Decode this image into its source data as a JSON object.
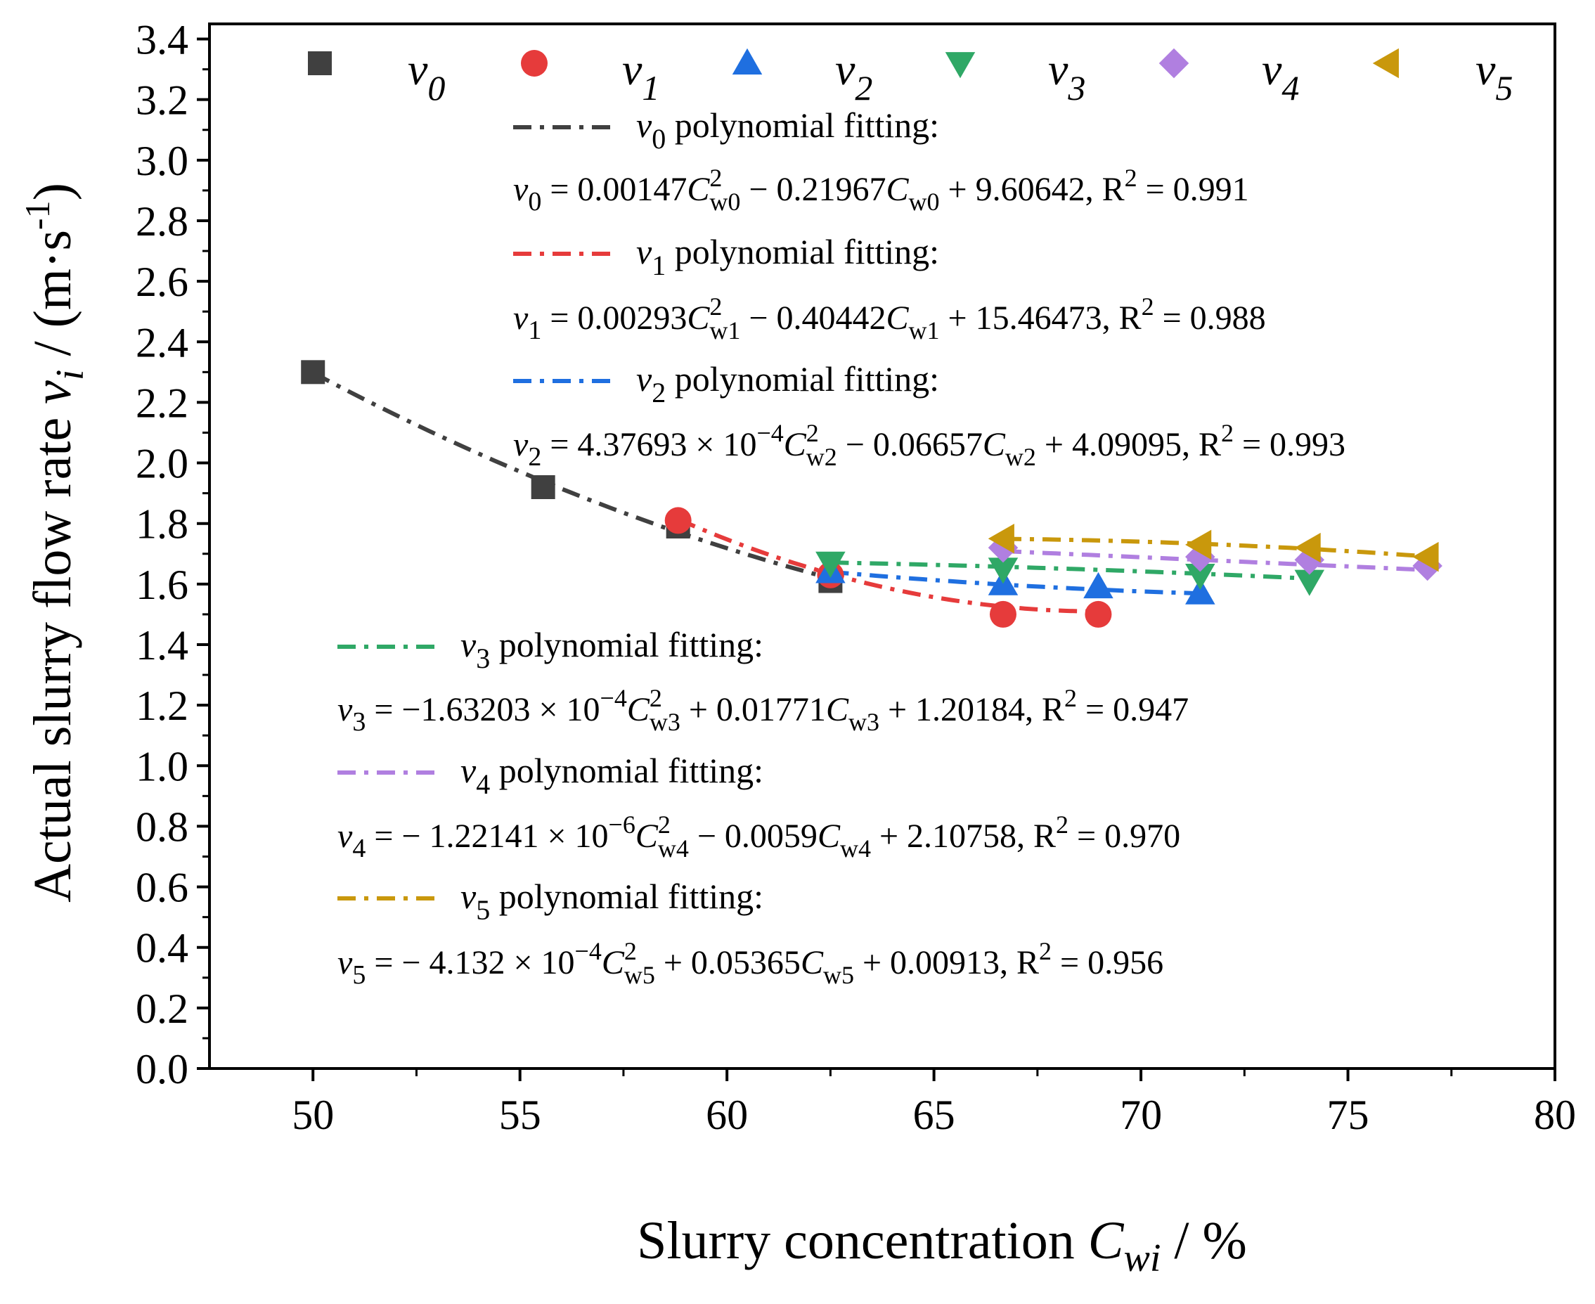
{
  "chart_data": {
    "type": "scatter",
    "title": "",
    "xlabel": "Slurry concentration",
    "xlabel_symbol": "C",
    "xlabel_sub": "wi",
    "xlabel_unit": " / %",
    "ylabel": "Actual slurry flow rate",
    "ylabel_symbol": "v",
    "ylabel_sub": "i",
    "ylabel_unit": " / (m·s",
    "ylabel_unit_sup": "-1",
    "ylabel_unit_close": ")",
    "xlim": [
      47.5,
      80
    ],
    "ylim": [
      0,
      3.45
    ],
    "x_ticks": [
      50,
      55,
      60,
      65,
      70,
      75,
      80
    ],
    "x_tick_labels": [
      "50",
      "55",
      "60",
      "65",
      "70",
      "75",
      "80"
    ],
    "y_ticks": [
      0.0,
      0.2,
      0.4,
      0.6,
      0.8,
      1.0,
      1.2,
      1.4,
      1.6,
      1.8,
      2.0,
      2.2,
      2.4,
      2.6,
      2.8,
      3.0,
      3.2,
      3.4
    ],
    "y_tick_labels": [
      "0.0",
      "0.2",
      "0.4",
      "0.6",
      "0.8",
      "1.0",
      "1.2",
      "1.4",
      "1.6",
      "1.8",
      "2.0",
      "2.2",
      "2.4",
      "2.6",
      "2.8",
      "3.0",
      "3.2",
      "3.4"
    ],
    "legend_position": "top",
    "series": [
      {
        "name": "v0",
        "symbol": "v",
        "sub": "0",
        "marker": "square",
        "color": "#404040",
        "points": [
          [
            50.0,
            2.3
          ],
          [
            55.56,
            1.92
          ],
          [
            58.82,
            1.79
          ],
          [
            62.5,
            1.61
          ]
        ],
        "fit": {
          "a": 0.00147,
          "b": -0.21967,
          "c": 9.60642,
          "x_range": [
            50.0,
            62.5
          ]
        },
        "fit_title": " polynomial fitting:",
        "equation": {
          "lhs": "v",
          "lhs_sub": "0",
          "p1": " = 0.00147",
          "c1": "C",
          "c1_sup": "2",
          "c1_sub": "w0",
          "p2": " − 0.21967",
          "c2": "C",
          "c2_sub": "w0",
          "p3": " + 9.60642, R",
          "r_sup": "2",
          "p4": " = 0.991"
        }
      },
      {
        "name": "v1",
        "symbol": "v",
        "sub": "1",
        "marker": "circle",
        "color": "#e63b3b",
        "points": [
          [
            58.82,
            1.81
          ],
          [
            62.5,
            1.63
          ],
          [
            66.67,
            1.5
          ],
          [
            68.97,
            1.5
          ]
        ],
        "fit": {
          "a": 0.00293,
          "b": -0.40442,
          "c": 15.46473,
          "x_range": [
            58.82,
            68.97
          ]
        },
        "fit_title": " polynomial fitting:",
        "equation": {
          "lhs": "v",
          "lhs_sub": "1",
          "p1": " = 0.00293",
          "c1": "C",
          "c1_sup": "2",
          "c1_sub": "w1",
          "p2": " − 0.40442",
          "c2": "C",
          "c2_sub": "w1",
          "p3": " + 15.46473, R",
          "r_sup": "2",
          "p4": " = 0.988"
        }
      },
      {
        "name": "v2",
        "symbol": "v",
        "sub": "2",
        "marker": "triangle-up",
        "color": "#1f6fe0",
        "points": [
          [
            62.5,
            1.64
          ],
          [
            66.67,
            1.6
          ],
          [
            68.97,
            1.59
          ],
          [
            71.43,
            1.57
          ]
        ],
        "fit": {
          "a": 0.000437693,
          "b": -0.06657,
          "c": 4.09095,
          "x_range": [
            62.5,
            71.43
          ]
        },
        "fit_title": " polynomial fitting:",
        "equation": {
          "lhs": "v",
          "lhs_sub": "2",
          "p1": " = 4.37693 × 10",
          "p1_sup": "−4",
          "c1": "C",
          "c1_sup": "2",
          "c1_sub": "w2",
          "p2": " − 0.06657",
          "c2": "C",
          "c2_sub": "w2",
          "p3": " + 4.09095, R",
          "r_sup": "2",
          "p4": " = 0.993"
        }
      },
      {
        "name": "v3",
        "symbol": "v",
        "sub": "3",
        "marker": "triangle-down",
        "color": "#2fa866",
        "points": [
          [
            62.5,
            1.67
          ],
          [
            66.67,
            1.65
          ],
          [
            71.43,
            1.63
          ],
          [
            74.07,
            1.61
          ]
        ],
        "fit": {
          "a": -0.000163203,
          "b": 0.01771,
          "c": 1.20184,
          "x_range": [
            62.5,
            74.07
          ]
        },
        "fit_title": " polynomial fitting:",
        "equation": {
          "lhs": "v",
          "lhs_sub": "3",
          "p1": " = −1.63203 × 10",
          "p1_sup": "−4",
          "c1": "C",
          "c1_sup": "2",
          "c1_sub": "w3",
          "p2": " + 0.01771",
          "c2": "C",
          "c2_sub": "w3",
          "p3": " + 1.20184, R",
          "r_sup": "2",
          "p4": " = 0.947"
        }
      },
      {
        "name": "v4",
        "symbol": "v",
        "sub": "4",
        "marker": "diamond",
        "color": "#b07fe0",
        "points": [
          [
            66.67,
            1.72
          ],
          [
            71.43,
            1.69
          ],
          [
            74.07,
            1.68
          ],
          [
            76.92,
            1.66
          ]
        ],
        "fit": {
          "a": -1.22141e-06,
          "b": -0.0059,
          "c": 2.10758,
          "x_range": [
            66.67,
            76.92
          ]
        },
        "fit_title": " polynomial fitting:",
        "equation": {
          "lhs": "v",
          "lhs_sub": "4",
          "p1": " = − 1.22141 × 10",
          "p1_sup": "−6",
          "c1": "C",
          "c1_sup": "2",
          "c1_sub": "w4",
          "p2": " − 0.0059",
          "c2": "C",
          "c2_sub": "w4",
          "p3": " + 2.10758, R",
          "r_sup": "2",
          "p4": " = 0.970"
        }
      },
      {
        "name": "v5",
        "symbol": "v",
        "sub": "5",
        "marker": "triangle-left",
        "color": "#c9980c",
        "points": [
          [
            66.67,
            1.75
          ],
          [
            71.43,
            1.73
          ],
          [
            74.07,
            1.72
          ],
          [
            76.92,
            1.69
          ]
        ],
        "fit": {
          "a": -0.0004132,
          "b": 0.05365,
          "c": 0.00913,
          "x_range": [
            66.67,
            76.92
          ]
        },
        "fit_title": " polynomial fitting:",
        "equation": {
          "lhs": "v",
          "lhs_sub": "5",
          "p1": " =  − 4.132 × 10",
          "p1_sup": "−4",
          "c1": "C",
          "c1_sup": "2",
          "c1_sub": "w5",
          "p2": " + 0.05365",
          "c2": "C",
          "c2_sub": "w5",
          "p3": " + 0.00913, R",
          "r_sup": "2",
          "p4": " = 0.956"
        }
      }
    ]
  }
}
